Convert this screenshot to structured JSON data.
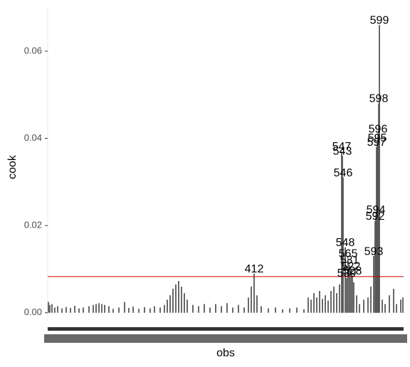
{
  "chart_data": {
    "type": "bar",
    "x_label": "obs",
    "y_label": "cook",
    "color": "#595959",
    "x": [
      1,
      3,
      6,
      10,
      14,
      20,
      26,
      32,
      38,
      44,
      50,
      58,
      64,
      68,
      72,
      76,
      80,
      86,
      92,
      100,
      108,
      114,
      120,
      128,
      136,
      144,
      150,
      158,
      164,
      168,
      172,
      176,
      180,
      184,
      188,
      192,
      196,
      204,
      212,
      220,
      228,
      236,
      244,
      252,
      260,
      268,
      276,
      282,
      286,
      290,
      294,
      300,
      310,
      320,
      330,
      340,
      350,
      360,
      366,
      370,
      374,
      378,
      382,
      386,
      390,
      394,
      398,
      402,
      406,
      410,
      413,
      414,
      415,
      418,
      420,
      422,
      424,
      426,
      428,
      430,
      434,
      438,
      444,
      450,
      454,
      458,
      460,
      461,
      462,
      463,
      464,
      465,
      466,
      470,
      474,
      480,
      486,
      490,
      496,
      499
    ],
    "values": [
      0.0025,
      0.0018,
      0.002,
      0.0012,
      0.0015,
      0.001,
      0.0013,
      0.0011,
      0.0016,
      0.001,
      0.0012,
      0.0015,
      0.0018,
      0.002,
      0.0022,
      0.002,
      0.0018,
      0.0015,
      0.0009,
      0.0012,
      0.0025,
      0.0011,
      0.0014,
      0.0009,
      0.0013,
      0.001,
      0.0015,
      0.0012,
      0.0018,
      0.003,
      0.004,
      0.0055,
      0.0065,
      0.0073,
      0.006,
      0.0045,
      0.003,
      0.0018,
      0.0015,
      0.002,
      0.0012,
      0.002,
      0.0015,
      0.0022,
      0.0012,
      0.0018,
      0.0012,
      0.0035,
      0.006,
      0.009,
      0.004,
      0.0015,
      0.001,
      0.0012,
      0.0008,
      0.001,
      0.0012,
      0.0008,
      0.0035,
      0.003,
      0.0045,
      0.0035,
      0.005,
      0.0032,
      0.004,
      0.0028,
      0.005,
      0.006,
      0.0045,
      0.0065,
      0.037,
      0.036,
      0.031,
      0.015,
      0.008,
      0.0125,
      0.011,
      0.0095,
      0.0085,
      0.007,
      0.004,
      0.002,
      0.003,
      0.0035,
      0.006,
      0.013,
      0.021,
      0.0225,
      0.038,
      0.039,
      0.041,
      0.048,
      0.066,
      0.003,
      0.002,
      0.004,
      0.0055,
      0.002,
      0.003,
      0.0035
    ],
    "labels": [
      null,
      null,
      null,
      null,
      null,
      null,
      null,
      null,
      null,
      null,
      null,
      null,
      null,
      null,
      null,
      null,
      null,
      null,
      null,
      null,
      null,
      null,
      null,
      null,
      null,
      null,
      null,
      null,
      null,
      null,
      null,
      null,
      null,
      null,
      null,
      null,
      null,
      null,
      null,
      null,
      null,
      null,
      null,
      null,
      null,
      null,
      null,
      null,
      null,
      "412",
      null,
      null,
      null,
      null,
      null,
      null,
      null,
      null,
      null,
      null,
      null,
      null,
      null,
      null,
      null,
      null,
      null,
      null,
      null,
      null,
      "547",
      "543",
      "546",
      "548",
      "539",
      "565",
      "531",
      "522",
      "528",
      null,
      null,
      null,
      null,
      null,
      null,
      "593",
      "592",
      "594",
      "597",
      "595",
      "596",
      "598",
      "599",
      null,
      null,
      null,
      null,
      null,
      null,
      null
    ],
    "hline": 0.0083,
    "hline_color": "#cc0000",
    "xlim": [
      0,
      500
    ],
    "ylim": [
      -0.002,
      0.0701
    ],
    "yticks": [
      {
        "value": 0,
        "label": "0.00"
      },
      {
        "value": 0.02,
        "label": "0.02"
      },
      {
        "value": 0.04,
        "label": "0.04"
      },
      {
        "value": 0.06,
        "label": "0.06"
      }
    ]
  }
}
